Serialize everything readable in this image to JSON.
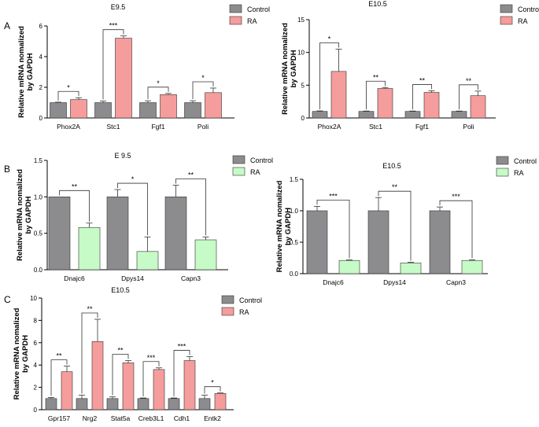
{
  "panel_labels": [
    "A",
    "B",
    "C"
  ],
  "legend_labels": [
    "Control",
    "RA"
  ],
  "colors": {
    "control": "#8c8c8f",
    "ra_red": "#f59c9c",
    "ra_green": "#c6fac6"
  },
  "chart_data": [
    {
      "type": "bar",
      "title": "E9.5",
      "ylabel": "Relative mRNA nomalized by GAPDH",
      "ylim": [
        0,
        6
      ],
      "yticks": [
        "0",
        "2",
        "4",
        "6"
      ],
      "categories": [
        "Phox2A",
        "Stc1",
        "Fgf1",
        "Poli"
      ],
      "series": [
        {
          "name": "Control",
          "values": [
            1.0,
            1.0,
            1.0,
            1.0
          ],
          "errors": [
            0.03,
            0.1,
            0.12,
            0.12
          ]
        },
        {
          "name": "RA",
          "values": [
            1.2,
            5.2,
            1.52,
            1.65
          ],
          "errors": [
            0.12,
            0.15,
            0.08,
            0.3
          ]
        }
      ],
      "significance": [
        "*",
        "***",
        "*",
        "*"
      ]
    },
    {
      "type": "bar",
      "title": "E10.5",
      "ylabel": "Relative mRNA nomalized by GAPDH",
      "ylim": [
        0,
        15
      ],
      "yticks": [
        "0",
        "5",
        "10",
        "15"
      ],
      "categories": [
        "Phox2A",
        "Stc1",
        "Fgf1",
        "Poli"
      ],
      "series": [
        {
          "name": "Control",
          "values": [
            1.0,
            1.0,
            1.0,
            1.0
          ],
          "errors": [
            0.08,
            0.06,
            0.06,
            0.06
          ]
        },
        {
          "name": "RA",
          "values": [
            7.1,
            4.5,
            3.9,
            3.4
          ],
          "errors": [
            3.4,
            0.15,
            0.25,
            0.7
          ]
        }
      ],
      "significance": [
        "*",
        "**",
        "**",
        "**"
      ]
    },
    {
      "type": "bar",
      "title": "E 9.5",
      "ylabel": "Relative mRNA nomalized by GAPDH",
      "ylim": [
        0,
        1.5
      ],
      "yticks": [
        "0.0",
        "0.5",
        "1.0",
        "1.5"
      ],
      "categories": [
        "Dnajc6",
        "Dpys14",
        "Capn3"
      ],
      "series": [
        {
          "name": "Control",
          "values": [
            1.0,
            1.0,
            1.0
          ],
          "errors": [
            0,
            0.1,
            0.16
          ]
        },
        {
          "name": "RA",
          "values": [
            0.58,
            0.25,
            0.41
          ],
          "errors": [
            0.06,
            0.2,
            0.04
          ]
        }
      ],
      "significance": [
        "**",
        "*",
        "**"
      ]
    },
    {
      "type": "bar",
      "title": "E10.5",
      "ylabel": "Relative mRNA nomalized by GAPDH",
      "ylim": [
        0,
        1.5
      ],
      "yticks": [
        "0.0",
        "0.5",
        "1.0",
        "1.5"
      ],
      "categories": [
        "Dnajc6",
        "Dpys14",
        "Capn3"
      ],
      "series": [
        {
          "name": "Control",
          "values": [
            1.0,
            1.0,
            1.0
          ],
          "errors": [
            0.07,
            0.21,
            0.06
          ]
        },
        {
          "name": "RA",
          "values": [
            0.21,
            0.17,
            0.21
          ],
          "errors": [
            0.01,
            0.01,
            0.01
          ]
        }
      ],
      "significance": [
        "***",
        "**",
        "***"
      ]
    },
    {
      "type": "bar",
      "title": "E10.5",
      "ylabel": "Relative mRNA nomalized by GAPDH",
      "ylim": [
        0,
        10
      ],
      "yticks": [
        "0",
        "2",
        "4",
        "6",
        "8",
        "10"
      ],
      "categories": [
        "Gpr157",
        "Nrg2",
        "Stat5a",
        "Creb3L1",
        "Cdh1",
        "Entk2"
      ],
      "series": [
        {
          "name": "Control",
          "values": [
            1.0,
            1.0,
            1.0,
            1.0,
            1.0,
            1.0
          ],
          "errors": [
            0.1,
            0.3,
            0.15,
            0.05,
            0.05,
            0.3
          ]
        },
        {
          "name": "RA",
          "values": [
            3.4,
            6.1,
            4.2,
            3.6,
            4.4,
            1.45
          ],
          "errors": [
            0.5,
            2.0,
            0.2,
            0.15,
            0.35,
            0.05
          ]
        }
      ],
      "significance": [
        "**",
        "**",
        "**",
        "***",
        "***",
        "*"
      ]
    }
  ]
}
